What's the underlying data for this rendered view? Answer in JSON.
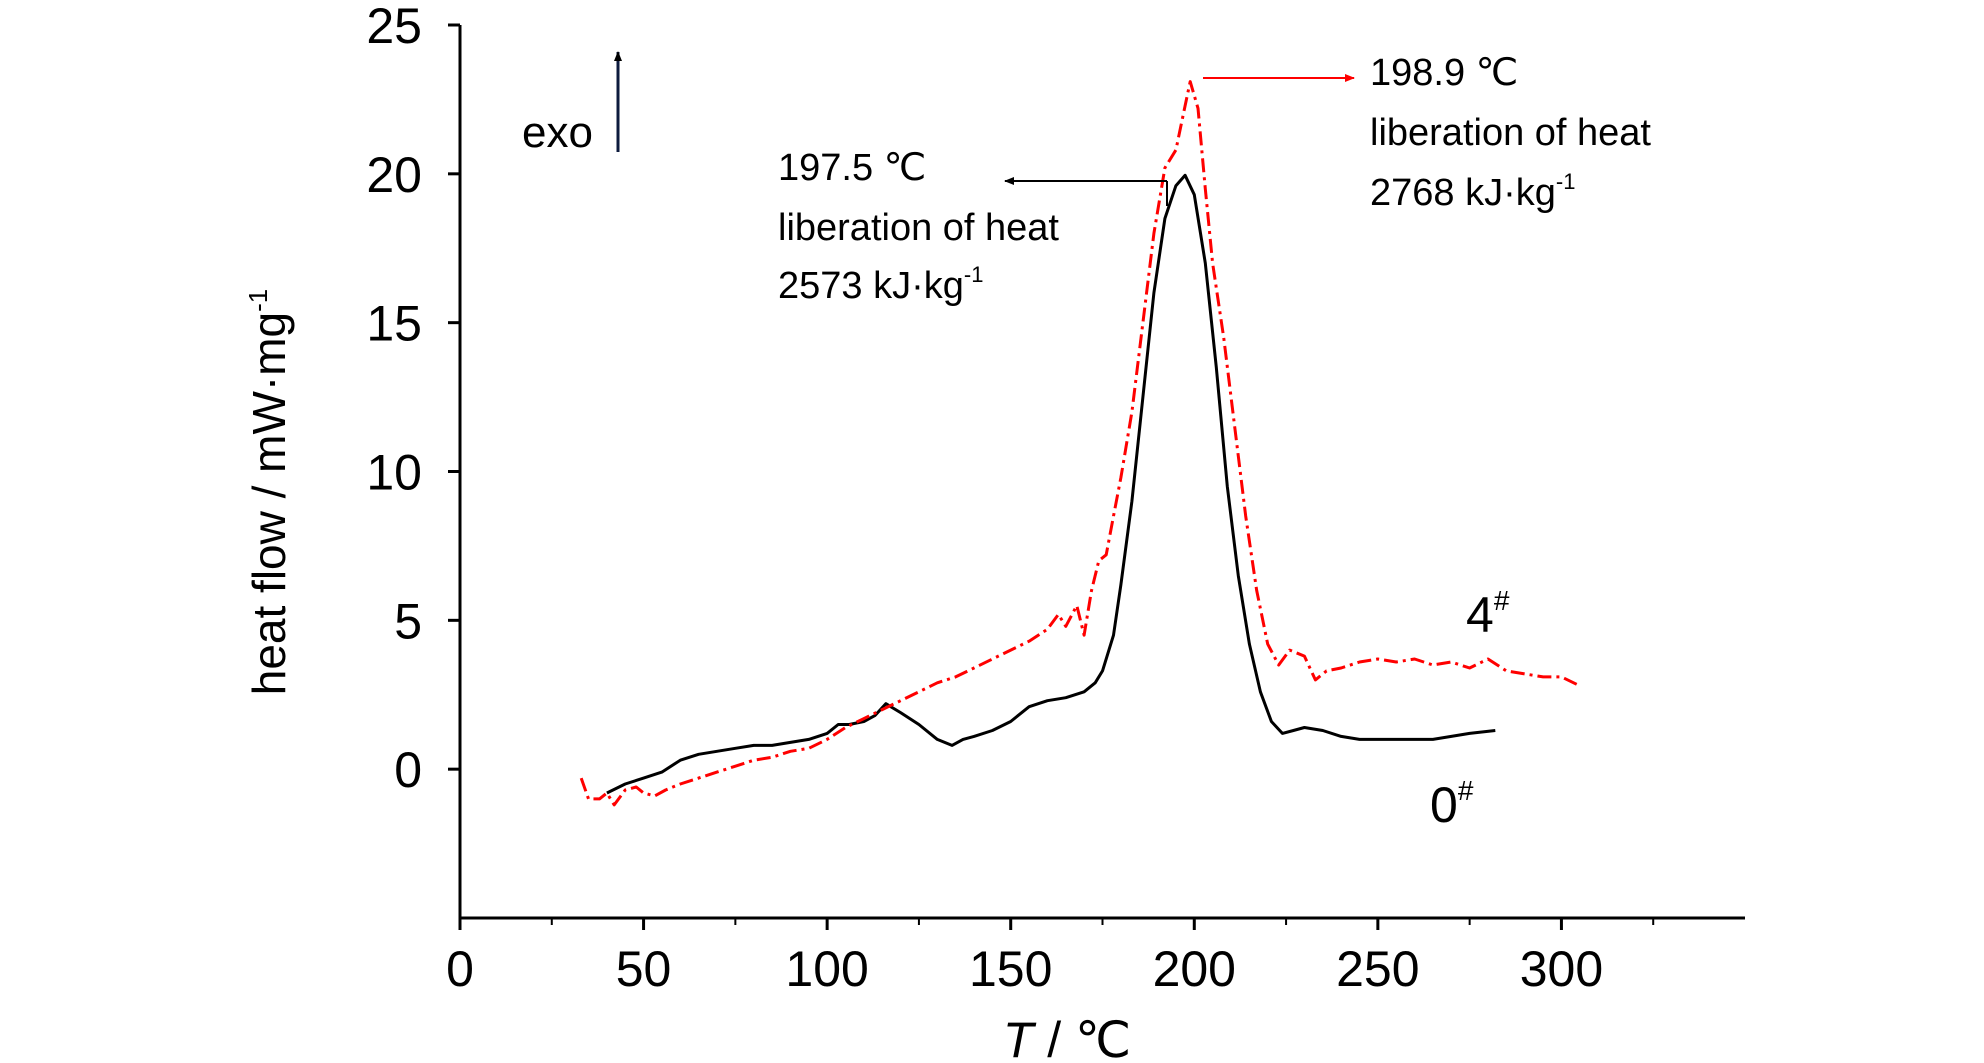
{
  "chart_data": {
    "type": "line",
    "xlabel": {
      "italic": "T",
      "rest": " / ℃"
    },
    "ylabel": {
      "base": "heat flow / mW·mg",
      "sup": "-1"
    },
    "xlim": [
      0,
      350
    ],
    "ylim": [
      -5,
      25
    ],
    "xticks": [
      0,
      50,
      100,
      150,
      200,
      250,
      300
    ],
    "yticks": [
      0,
      5,
      10,
      15,
      20,
      25
    ],
    "xtick_labels": [
      "0",
      "50",
      "100",
      "150",
      "200",
      "250",
      "300"
    ],
    "ytick_labels": [
      "0",
      "5",
      "10",
      "15",
      "20",
      "25"
    ],
    "grid": false,
    "exo_label": "exo",
    "series": [
      {
        "name": "0#",
        "label_main": "0",
        "label_sup": "#",
        "color": "#000000",
        "style": "solid",
        "x": [
          40,
          45,
          50,
          55,
          60,
          65,
          70,
          75,
          80,
          85,
          90,
          95,
          100,
          103,
          106,
          110,
          113,
          116,
          120,
          125,
          130,
          134,
          137,
          140,
          145,
          150,
          155,
          160,
          165,
          170,
          173,
          175,
          178,
          180,
          183,
          186,
          189,
          192,
          195,
          197.5,
          200,
          203,
          206,
          209,
          212,
          215,
          218,
          221,
          224,
          227,
          230,
          235,
          240,
          245,
          250,
          255,
          260,
          265,
          270,
          275,
          282
        ],
        "y": [
          -0.8,
          -0.5,
          -0.3,
          -0.1,
          0.3,
          0.5,
          0.6,
          0.7,
          0.8,
          0.8,
          0.9,
          1.0,
          1.2,
          1.5,
          1.5,
          1.6,
          1.8,
          2.2,
          1.9,
          1.5,
          1.0,
          0.8,
          1.0,
          1.1,
          1.3,
          1.6,
          2.1,
          2.3,
          2.4,
          2.6,
          2.9,
          3.3,
          4.5,
          6.2,
          9.0,
          12.5,
          16.0,
          18.5,
          19.6,
          19.95,
          19.3,
          17.0,
          13.5,
          9.5,
          6.5,
          4.2,
          2.6,
          1.6,
          1.2,
          1.3,
          1.4,
          1.3,
          1.1,
          1.0,
          1.0,
          1.0,
          1.0,
          1.0,
          1.1,
          1.2,
          1.3
        ]
      },
      {
        "name": "4#",
        "label_main": "4",
        "label_sup": "#",
        "color": "#ff0000",
        "style": "dash-dot",
        "x": [
          33,
          35,
          38,
          40,
          42,
          45,
          48,
          50,
          53,
          56,
          60,
          65,
          70,
          75,
          80,
          85,
          90,
          95,
          100,
          105,
          110,
          115,
          120,
          125,
          130,
          135,
          140,
          145,
          150,
          155,
          160,
          163,
          165,
          168,
          170,
          172,
          174,
          176,
          178,
          180,
          183,
          186,
          189,
          192,
          195,
          197,
          198.9,
          201,
          203,
          205,
          208,
          211,
          214,
          217,
          220,
          223,
          226,
          230,
          233,
          236,
          240,
          245,
          250,
          255,
          260,
          265,
          270,
          275,
          280,
          285,
          290,
          295,
          300,
          305
        ],
        "y": [
          -0.3,
          -1.0,
          -1.0,
          -0.8,
          -1.2,
          -0.7,
          -0.6,
          -0.8,
          -0.9,
          -0.7,
          -0.5,
          -0.3,
          -0.1,
          0.1,
          0.3,
          0.4,
          0.6,
          0.7,
          1.0,
          1.4,
          1.7,
          2.0,
          2.3,
          2.6,
          2.9,
          3.1,
          3.4,
          3.7,
          4.0,
          4.3,
          4.7,
          5.2,
          4.8,
          5.5,
          4.5,
          6.0,
          7.0,
          7.2,
          8.5,
          9.8,
          12.0,
          15.0,
          18.0,
          20.2,
          20.8,
          22.0,
          23.1,
          22.2,
          19.5,
          17.0,
          14.5,
          11.5,
          8.5,
          6.0,
          4.2,
          3.5,
          4.0,
          3.8,
          3.0,
          3.3,
          3.4,
          3.6,
          3.7,
          3.6,
          3.7,
          3.5,
          3.6,
          3.4,
          3.7,
          3.3,
          3.2,
          3.1,
          3.1,
          2.8
        ]
      }
    ],
    "annotations": [
      {
        "name": "peak-0",
        "lines": [
          "197.5 ℃",
          "liberation of heat"
        ],
        "value_line": {
          "base": "2573 kJ·kg",
          "sup": "-1"
        }
      },
      {
        "name": "peak-4",
        "lines": [
          "198.9 ℃",
          "liberation of heat"
        ],
        "value_line": {
          "base": "2768 kJ·kg",
          "sup": "-1"
        }
      }
    ]
  }
}
